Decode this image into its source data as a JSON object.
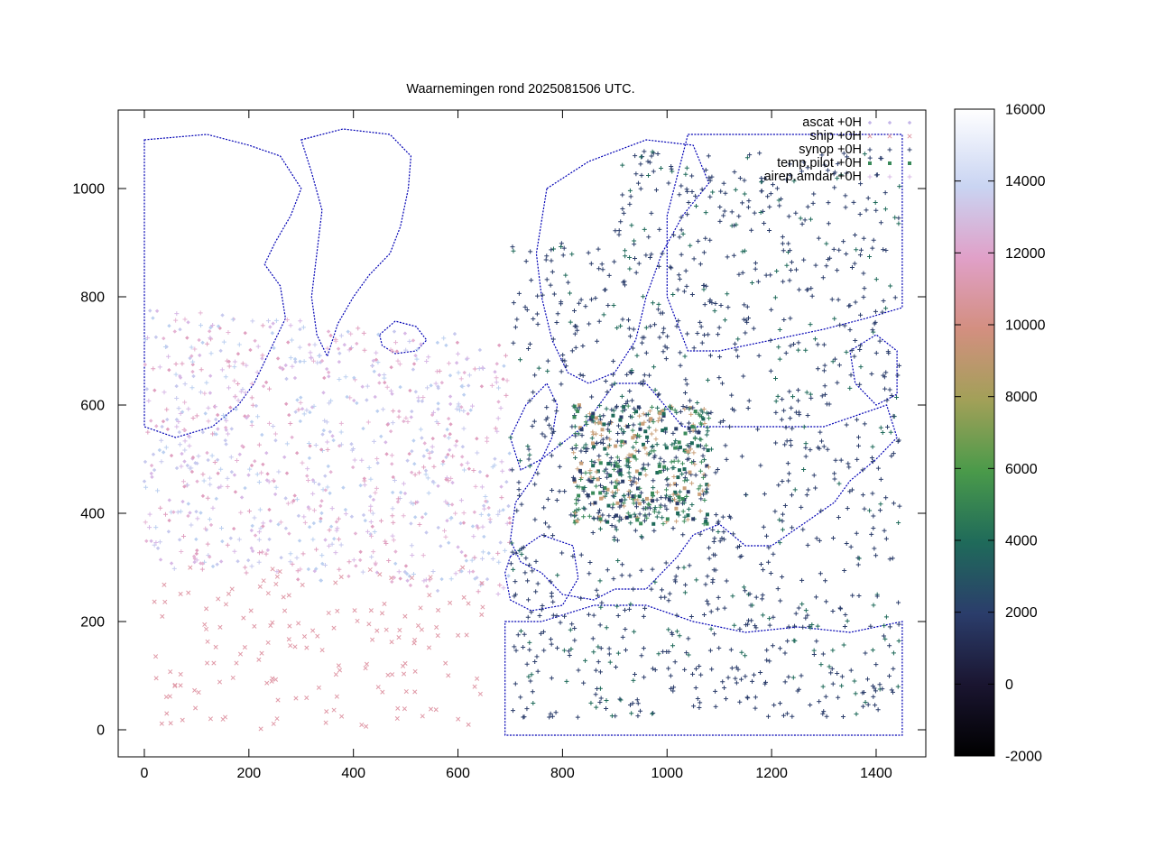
{
  "chart_data": {
    "type": "scatter",
    "title": "Waarnemingen rond 2025081506 UTC.",
    "xlabel": "",
    "ylabel": "",
    "xlim": [
      -50,
      1495
    ],
    "ylim": [
      -50,
      1145
    ],
    "x_ticks": [
      0,
      200,
      400,
      600,
      800,
      1000,
      1200,
      1400
    ],
    "y_ticks": [
      0,
      200,
      400,
      600,
      800,
      1000
    ],
    "x_tick_labels": [
      "0",
      "200",
      "400",
      "600",
      "800",
      "1000",
      "1200",
      "1400"
    ],
    "y_tick_labels": [
      "0",
      "200",
      "400",
      "600",
      "800",
      "1000"
    ],
    "grid": false,
    "legend_position": "top-right",
    "colorbar": {
      "range": [
        -2000,
        16000
      ],
      "ticks": [
        -2000,
        0,
        2000,
        4000,
        6000,
        8000,
        10000,
        12000,
        14000,
        16000
      ],
      "tick_labels": [
        "-2000",
        "0",
        "2000",
        "4000",
        "6000",
        "8000",
        "10000",
        "12000",
        "14000",
        "16000"
      ],
      "colormap": "cubehelix"
    },
    "background_map": {
      "color": "#0000b4",
      "description": "coastline outlines"
    },
    "series": [
      {
        "name": "ascat +0H",
        "marker": "diamond",
        "color": "#c3b5e8"
      },
      {
        "name": "ship +0H",
        "marker": "x",
        "color": "#e09aa8"
      },
      {
        "name": "synop +0H",
        "marker": "plus",
        "color": "#2b3d6b"
      },
      {
        "name": "temp.pilot +0H",
        "marker": "square",
        "color": "#3a8a5a"
      },
      {
        "name": "airep.amdar +0H",
        "marker": "plus",
        "color": "#d8b9e6"
      }
    ]
  }
}
